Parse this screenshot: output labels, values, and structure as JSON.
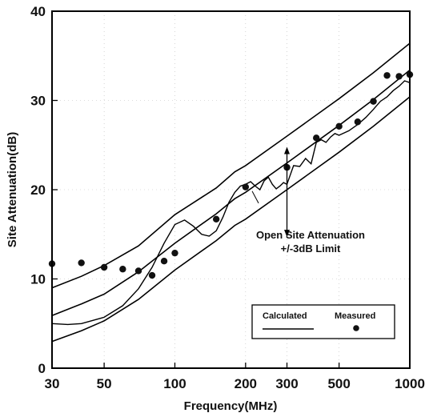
{
  "chart_data": {
    "type": "line",
    "x_scale": "log",
    "xlabel": "Frequency(MHz)",
    "ylabel": "Site  Attenuation(dB)",
    "xlim": [
      30,
      1000
    ],
    "ylim": [
      0,
      40
    ],
    "x_ticks": [
      30,
      50,
      100,
      200,
      300,
      500,
      1000
    ],
    "x_tick_labels": [
      "30",
      "50",
      "100",
      "200",
      "300",
      "500",
      "1000"
    ],
    "y_ticks": [
      0,
      10,
      20,
      30,
      40
    ],
    "y_tick_labels": [
      "0",
      "10",
      "20",
      "30",
      "40"
    ],
    "grid": true,
    "annotation": {
      "lines": [
        "Open Site Attenuation",
        "+/-3dB Limit"
      ],
      "arrow_at_x": 300,
      "arrow_y": [
        14.7,
        24.8
      ]
    },
    "legend": {
      "position": "lower-right",
      "calculated_label": "Calculated",
      "measured_label": "Measured"
    },
    "series": [
      {
        "name": "Open Site Attenuation",
        "role": "nominal",
        "x": [
          30,
          40,
          50,
          70,
          100,
          150,
          180,
          200,
          300,
          500,
          700,
          1000
        ],
        "y": [
          5.9,
          7.2,
          8.3,
          10.8,
          14.0,
          17.3,
          19.0,
          19.7,
          23.0,
          27.2,
          30.1,
          33.4
        ]
      },
      {
        "name": "+3dB Limit",
        "role": "upper",
        "x": [
          30,
          40,
          50,
          70,
          100,
          150,
          180,
          200,
          300,
          500,
          700,
          1000
        ],
        "y": [
          9.0,
          10.3,
          11.5,
          13.7,
          17.2,
          20.2,
          22.0,
          22.7,
          26.0,
          30.2,
          33.1,
          36.4
        ]
      },
      {
        "name": "-3dB Limit",
        "role": "lower",
        "x": [
          30,
          40,
          50,
          70,
          100,
          150,
          180,
          200,
          300,
          500,
          700,
          1000
        ],
        "y": [
          3.0,
          4.2,
          5.3,
          7.7,
          11.0,
          14.3,
          16.0,
          16.7,
          20.0,
          24.2,
          27.1,
          30.4
        ]
      },
      {
        "name": "Calculated",
        "role": "calculated",
        "x": [
          30,
          35,
          40,
          50,
          60,
          70,
          80,
          90,
          100,
          110,
          120,
          130,
          140,
          150,
          160,
          170,
          180,
          190,
          200,
          210,
          220,
          230,
          240,
          250,
          260,
          270,
          280,
          290,
          300,
          320,
          340,
          360,
          380,
          400,
          420,
          440,
          460,
          480,
          500,
          550,
          600,
          650,
          700,
          750,
          800,
          850,
          900,
          950,
          1000
        ],
        "y": [
          5.0,
          4.9,
          5.0,
          5.7,
          7.0,
          8.9,
          11.3,
          14.0,
          16.1,
          16.6,
          15.9,
          15.0,
          14.8,
          15.4,
          16.9,
          18.6,
          19.7,
          20.4,
          20.6,
          20.9,
          20.4,
          20.0,
          21.0,
          21.4,
          20.6,
          20.1,
          20.4,
          20.8,
          20.6,
          22.7,
          22.6,
          23.5,
          22.9,
          25.3,
          25.6,
          25.3,
          25.9,
          26.3,
          26.1,
          26.6,
          27.3,
          28.1,
          29.0,
          29.9,
          30.4,
          31.1,
          31.6,
          32.2,
          32.0
        ]
      },
      {
        "name": "Measured",
        "role": "measured",
        "x": [
          30,
          40,
          50,
          60,
          70,
          80,
          90,
          100,
          150,
          200,
          300,
          400,
          500,
          600,
          700,
          800,
          900,
          1000
        ],
        "y": [
          11.7,
          11.8,
          11.3,
          11.1,
          10.9,
          10.4,
          12.0,
          12.9,
          16.7,
          20.3,
          22.5,
          25.8,
          27.1,
          27.6,
          29.9,
          32.8,
          32.7,
          32.9
        ]
      }
    ]
  }
}
